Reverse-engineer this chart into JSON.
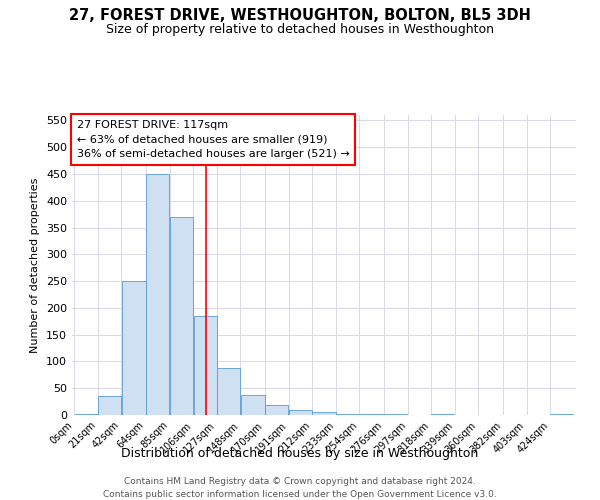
{
  "title": "27, FOREST DRIVE, WESTHOUGHTON, BOLTON, BL5 3DH",
  "subtitle": "Size of property relative to detached houses in Westhoughton",
  "xlabel": "Distribution of detached houses by size in Westhoughton",
  "ylabel": "Number of detached properties",
  "bar_color": "#cfe0f3",
  "bar_edge_color": "#5b9bd5",
  "bar_values": [
    2,
    35,
    250,
    450,
    370,
    185,
    88,
    37,
    18,
    10,
    5,
    2,
    1,
    1,
    0,
    1,
    0,
    0,
    0,
    0,
    1
  ],
  "categories": [
    "0sqm",
    "21sqm",
    "42sqm",
    "64sqm",
    "85sqm",
    "106sqm",
    "127sqm",
    "148sqm",
    "170sqm",
    "191sqm",
    "212sqm",
    "233sqm",
    "254sqm",
    "276sqm",
    "297sqm",
    "318sqm",
    "339sqm",
    "360sqm",
    "382sqm",
    "403sqm",
    "424sqm"
  ],
  "annotation_text": "27 FOREST DRIVE: 117sqm\n← 63% of detached houses are smaller (919)\n36% of semi-detached houses are larger (521) →",
  "footer_line1": "Contains HM Land Registry data © Crown copyright and database right 2024.",
  "footer_line2": "Contains public sector information licensed under the Open Government Licence v3.0.",
  "ylim": [
    0,
    560
  ],
  "bin_edges": [
    0,
    21,
    42,
    64,
    85,
    106,
    127,
    148,
    170,
    191,
    212,
    233,
    254,
    276,
    297,
    318,
    339,
    360,
    382,
    403,
    424,
    445
  ],
  "vline_x": 117,
  "grid_color": "#d8d8e8",
  "title_fontsize": 10.5,
  "subtitle_fontsize": 9
}
